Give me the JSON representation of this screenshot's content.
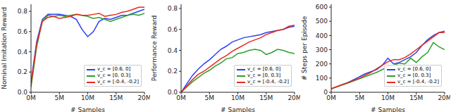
{
  "chart_data": [
    {
      "type": "line",
      "y_label": "Nominal Imitation Reward",
      "x_label": "# Samples",
      "x": [
        0,
        1,
        2,
        3,
        4,
        5,
        6,
        7,
        8,
        9,
        10,
        11,
        12,
        13,
        14,
        15,
        16,
        17,
        18,
        19,
        20
      ],
      "xlim": [
        0,
        20
      ],
      "xticks": [
        {
          "value": 0,
          "label": "0M"
        },
        {
          "value": 5,
          "label": "5M"
        },
        {
          "value": 10,
          "label": "10M"
        },
        {
          "value": 15,
          "label": "15M"
        },
        {
          "value": 20,
          "label": "20M"
        }
      ],
      "ylim": [
        0,
        0.87
      ],
      "yticks": [
        {
          "value": 0,
          "label": "0.0"
        },
        0.2,
        0.4,
        0.6,
        0.8
      ],
      "grid": false,
      "legend": "lower right",
      "series": [
        {
          "name": "v_c = [0.6, 0]",
          "color": "#2a3ff0",
          "values": [
            0.1,
            0.5,
            0.72,
            0.77,
            0.77,
            0.77,
            0.76,
            0.75,
            0.72,
            0.62,
            0.55,
            0.6,
            0.7,
            0.73,
            0.72,
            0.74,
            0.76,
            0.76,
            0.78,
            0.8,
            0.82
          ]
        },
        {
          "name": "v_c = [0, 0.3]",
          "color": "#2ca02c",
          "values": [
            0.05,
            0.45,
            0.7,
            0.76,
            0.75,
            0.76,
            0.75,
            0.76,
            0.77,
            0.76,
            0.75,
            0.73,
            0.74,
            0.72,
            0.7,
            0.72,
            0.74,
            0.76,
            0.77,
            0.76,
            0.78
          ]
        },
        {
          "name": "v_c = [-0.4, -0.2]",
          "color": "#e8281e",
          "values": [
            0.08,
            0.48,
            0.7,
            0.74,
            0.75,
            0.73,
            0.74,
            0.75,
            0.77,
            0.76,
            0.76,
            0.77,
            0.78,
            0.75,
            0.76,
            0.77,
            0.79,
            0.8,
            0.82,
            0.84,
            0.84
          ]
        }
      ]
    },
    {
      "type": "line",
      "y_label": "Performance Reward",
      "x_label": "# Samples",
      "x": [
        0,
        1,
        2,
        3,
        4,
        5,
        6,
        7,
        8,
        9,
        10,
        11,
        12,
        13,
        14,
        15,
        16,
        17,
        18,
        19,
        20
      ],
      "xlim": [
        0,
        20
      ],
      "xticks": [
        {
          "value": 0,
          "label": "0M"
        },
        {
          "value": 5,
          "label": "5M"
        },
        {
          "value": 10,
          "label": "10M"
        },
        {
          "value": 15,
          "label": "15M"
        },
        {
          "value": 20,
          "label": "20M"
        }
      ],
      "ylim": [
        0,
        0.84
      ],
      "yticks": [
        {
          "value": 0,
          "label": "0.0"
        },
        0.2,
        0.4,
        0.6,
        0.8
      ],
      "grid": false,
      "legend": "lower right",
      "series": [
        {
          "name": "v_c = [0.6, 0]",
          "color": "#2a3ff0",
          "values": [
            0,
            0.08,
            0.16,
            0.22,
            0.27,
            0.31,
            0.36,
            0.41,
            0.44,
            0.48,
            0.5,
            0.52,
            0.53,
            0.54,
            0.55,
            0.57,
            0.58,
            0.59,
            0.6,
            0.62,
            0.63
          ]
        },
        {
          "name": "v_c = [0, 0.3]",
          "color": "#2ca02c",
          "values": [
            0,
            0.05,
            0.1,
            0.14,
            0.18,
            0.21,
            0.25,
            0.28,
            0.32,
            0.33,
            0.37,
            0.38,
            0.4,
            0.41,
            0.4,
            0.36,
            0.38,
            0.41,
            0.4,
            0.38,
            0.37
          ]
        },
        {
          "name": "v_c = [-0.4, -0.2]",
          "color": "#e8281e",
          "values": [
            0,
            0.06,
            0.12,
            0.17,
            0.2,
            0.24,
            0.28,
            0.32,
            0.35,
            0.39,
            0.42,
            0.45,
            0.48,
            0.5,
            0.52,
            0.55,
            0.57,
            0.59,
            0.6,
            0.63,
            0.64
          ]
        }
      ]
    },
    {
      "type": "line",
      "y_label": "# Steps per Episode",
      "x_label": "# Samples",
      "x": [
        0,
        1,
        2,
        3,
        4,
        5,
        6,
        7,
        8,
        9,
        10,
        11,
        12,
        13,
        14,
        15,
        16,
        17,
        18,
        19,
        20
      ],
      "xlim": [
        0,
        20
      ],
      "xticks": [
        {
          "value": 0,
          "label": "0M"
        },
        {
          "value": 5,
          "label": "5M"
        },
        {
          "value": 10,
          "label": "10M"
        },
        {
          "value": 15,
          "label": "15M"
        },
        {
          "value": 20,
          "label": "20M"
        }
      ],
      "ylim": [
        0,
        620
      ],
      "yticks": [
        0,
        100,
        200,
        300,
        400,
        500,
        600
      ],
      "grid": false,
      "legend": "lower right",
      "series": [
        {
          "name": "v_c = [0.6, 0]",
          "color": "#2a3ff0",
          "values": [
            25,
            40,
            55,
            70,
            90,
            110,
            130,
            145,
            160,
            190,
            240,
            200,
            210,
            230,
            250,
            280,
            330,
            370,
            400,
            420,
            430
          ]
        },
        {
          "name": "v_c = [0, 0.3]",
          "color": "#2ca02c",
          "values": [
            25,
            38,
            52,
            65,
            80,
            95,
            110,
            125,
            140,
            160,
            180,
            190,
            205,
            200,
            240,
            210,
            250,
            280,
            350,
            320,
            300
          ]
        },
        {
          "name": "v_c = [-0.4, -0.2]",
          "color": "#e8281e",
          "values": [
            25,
            40,
            55,
            68,
            85,
            100,
            120,
            140,
            165,
            190,
            215,
            230,
            230,
            245,
            270,
            300,
            330,
            360,
            390,
            420,
            420
          ]
        }
      ]
    }
  ]
}
